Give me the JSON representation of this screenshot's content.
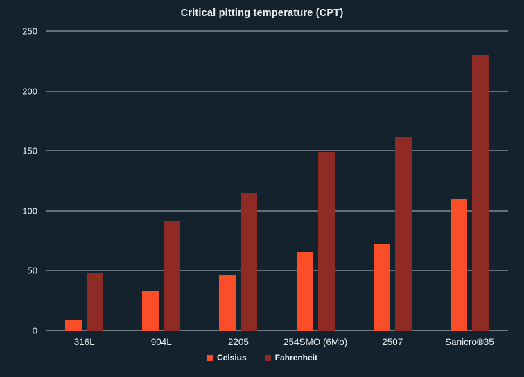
{
  "chart_data": {
    "type": "bar",
    "title": "Critical pitting temperature (CPT)",
    "categories": [
      "316L",
      "904L",
      "2205",
      "254SMO (6Mo)",
      "2507",
      "Sanicro®35"
    ],
    "series": [
      {
        "name": "Celsius",
        "color": "#F94E27",
        "values": [
          9,
          33,
          46,
          65,
          72,
          110
        ]
      },
      {
        "name": "Fahrenheit",
        "color": "#8E2B25",
        "values": [
          48.2,
          91.4,
          114.8,
          149,
          161.6,
          230
        ]
      }
    ],
    "xlabel": "",
    "ylabel": "",
    "ylim": [
      0,
      250
    ],
    "yticks": [
      0,
      50,
      100,
      150,
      200,
      250
    ],
    "grid": true,
    "legend_position": "bottom",
    "colors": {
      "background": "#13222C",
      "text": "#E9EFF3",
      "gridline": "#AFBFC9",
      "baseline": "#C9D6DD"
    }
  }
}
